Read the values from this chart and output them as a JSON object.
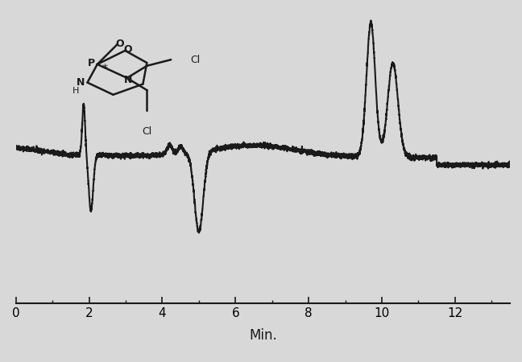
{
  "background_color": "#d8d8d8",
  "plot_bg_color": "#d8d8d8",
  "line_color": "#1a1a1a",
  "xlim": [
    0,
    13.5
  ],
  "ylim": [
    -1.0,
    1.0
  ],
  "xticks": [
    0,
    2,
    4,
    6,
    8,
    10,
    12
  ],
  "xlabel": "Min.",
  "xlabel_fontsize": 12,
  "tick_fontsize": 11,
  "line_width": 1.5
}
